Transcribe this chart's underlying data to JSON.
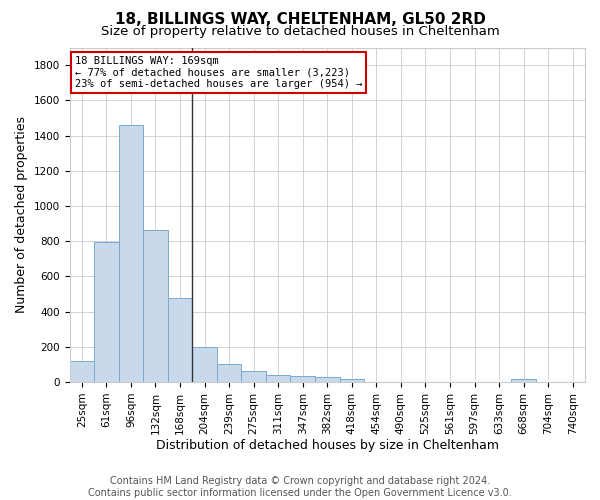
{
  "title": "18, BILLINGS WAY, CHELTENHAM, GL50 2RD",
  "subtitle": "Size of property relative to detached houses in Cheltenham",
  "xlabel": "Distribution of detached houses by size in Cheltenham",
  "ylabel": "Number of detached properties",
  "footer1": "Contains HM Land Registry data © Crown copyright and database right 2024.",
  "footer2": "Contains public sector information licensed under the Open Government Licence v3.0.",
  "categories": [
    "25sqm",
    "61sqm",
    "96sqm",
    "132sqm",
    "168sqm",
    "204sqm",
    "239sqm",
    "275sqm",
    "311sqm",
    "347sqm",
    "382sqm",
    "418sqm",
    "454sqm",
    "490sqm",
    "525sqm",
    "561sqm",
    "597sqm",
    "633sqm",
    "668sqm",
    "704sqm",
    "740sqm"
  ],
  "values": [
    120,
    795,
    1460,
    862,
    475,
    200,
    100,
    65,
    42,
    35,
    28,
    18,
    0,
    0,
    0,
    0,
    0,
    0,
    18,
    0,
    0
  ],
  "bar_color": "#c9d9ec",
  "bar_edge_color": "#7aaacf",
  "vline_x_idx": 4,
  "vline_color": "#333333",
  "annotation_line1": "18 BILLINGS WAY: 169sqm",
  "annotation_line2": "← 77% of detached houses are smaller (3,223)",
  "annotation_line3": "23% of semi-detached houses are larger (954) →",
  "annotation_box_color": "#ffffff",
  "annotation_box_edge": "#cc0000",
  "ylim": [
    0,
    1900
  ],
  "yticks": [
    0,
    200,
    400,
    600,
    800,
    1000,
    1200,
    1400,
    1600,
    1800
  ],
  "bg_color": "#ffffff",
  "grid_color": "#cccccc",
  "title_fontsize": 11,
  "subtitle_fontsize": 9.5,
  "ylabel_fontsize": 9,
  "xlabel_fontsize": 9,
  "tick_fontsize": 7.5,
  "annotation_fontsize": 7.5,
  "footer_fontsize": 7
}
